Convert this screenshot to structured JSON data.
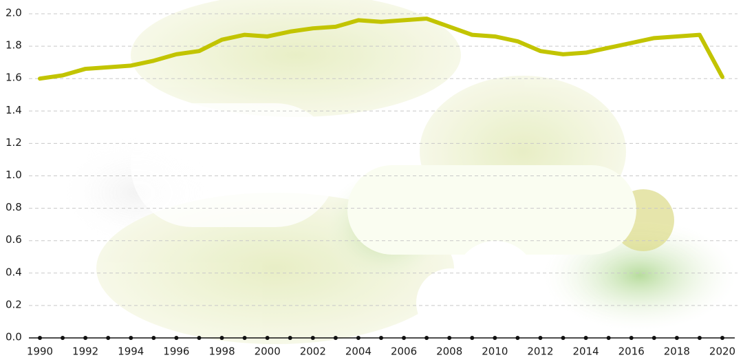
{
  "chart_data": {
    "type": "line",
    "x": [
      1990,
      1991,
      1992,
      1993,
      1994,
      1995,
      1996,
      1997,
      1998,
      1999,
      2000,
      2001,
      2002,
      2003,
      2004,
      2005,
      2006,
      2007,
      2008,
      2009,
      2010,
      2011,
      2012,
      2013,
      2014,
      2015,
      2016,
      2017,
      2018,
      2019,
      2020
    ],
    "series": [
      {
        "color": "#c2c400",
        "values": [
          1.6,
          1.62,
          1.66,
          1.67,
          1.68,
          1.71,
          1.75,
          1.77,
          1.84,
          1.87,
          1.86,
          1.89,
          1.91,
          1.92,
          1.96,
          1.95,
          1.96,
          1.97,
          1.92,
          1.87,
          1.86,
          1.83,
          1.77,
          1.75,
          1.76,
          1.79,
          1.82,
          1.85,
          1.86,
          1.87,
          1.61
        ]
      }
    ],
    "xlim": [
      1990,
      2020
    ],
    "xticks": [
      1990,
      1992,
      1994,
      1996,
      1998,
      2000,
      2002,
      2004,
      2006,
      2008,
      2010,
      2012,
      2014,
      2016,
      2018,
      2020
    ],
    "ylim": [
      0,
      2
    ],
    "yticks": [
      {
        "value": 0,
        "label": "0.0"
      },
      0.2,
      0.4,
      0.6,
      0.8,
      {
        "value": 1,
        "label": "1.0"
      },
      1.2,
      1.4,
      1.6,
      1.8,
      {
        "value": 2,
        "label": "2.0"
      }
    ],
    "grid": true
  }
}
